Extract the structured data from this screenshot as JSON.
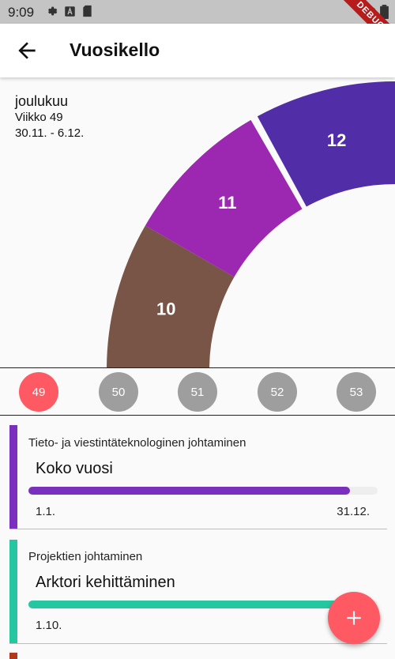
{
  "status": {
    "time": "9:09",
    "debug_label": "DEBUG"
  },
  "appbar": {
    "title": "Vuosikello"
  },
  "info": {
    "month": "joulukuu",
    "week": "Viikko 49",
    "range": "30.11. - 6.12."
  },
  "wheel": {
    "segments": [
      {
        "label": "10",
        "color": "#795548"
      },
      {
        "label": "11",
        "color": "#9c27b0"
      },
      {
        "label": "12",
        "color": "#512da8"
      }
    ]
  },
  "weeks": [
    {
      "label": "49",
      "active": true
    },
    {
      "label": "50",
      "active": false
    },
    {
      "label": "51",
      "active": false
    },
    {
      "label": "52",
      "active": false
    },
    {
      "label": "53",
      "active": false
    }
  ],
  "cards": [
    {
      "subtitle": "Tieto- ja viestintäteknologinen johtaminen",
      "title": "Koko vuosi",
      "color": "#7b2fbe",
      "progress": 0.92,
      "start": "1.1.",
      "end": "31.12."
    },
    {
      "subtitle": "Projektien johtaminen",
      "title": "Arktori kehittäminen",
      "color": "#26c6a0",
      "progress": 0.9,
      "start": "1.10.",
      "end": ""
    }
  ],
  "third_card_color": "#b03a20",
  "fab": {
    "icon": "plus-icon",
    "color": "#ff5a63"
  }
}
